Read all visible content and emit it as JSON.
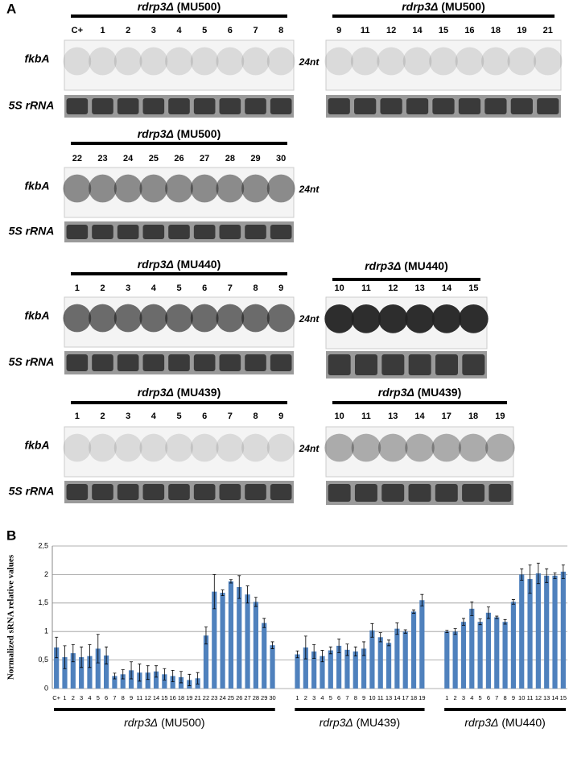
{
  "panel_a": {
    "label": "A",
    "blots": [
      {
        "gene": "rdrp3Δ",
        "strain": "(MU500)",
        "lanes": [
          "C+",
          "1",
          "2",
          "3",
          "4",
          "5",
          "6",
          "7",
          "8"
        ],
        "probe": "fkbA",
        "loading": "5S rRNA",
        "size": "24nt"
      },
      {
        "gene": "rdrp3Δ",
        "strain": "(MU500)",
        "lanes": [
          "9",
          "11",
          "12",
          "14",
          "15",
          "16",
          "18",
          "19",
          "21"
        ]
      },
      {
        "gene": "rdrp3Δ",
        "strain": "(MU500)",
        "lanes": [
          "22",
          "23",
          "24",
          "25",
          "26",
          "27",
          "28",
          "29",
          "30"
        ],
        "probe": "fkbA",
        "loading": "5S rRNA",
        "size": "24nt"
      },
      {
        "gene": "rdrp3Δ",
        "strain": "(MU440)",
        "lanes": [
          "1",
          "2",
          "3",
          "4",
          "5",
          "6",
          "7",
          "8",
          "9"
        ],
        "probe": "fkbA",
        "loading": "5S rRNA",
        "size": "24nt"
      },
      {
        "gene": "rdrp3Δ",
        "strain": "(MU440)",
        "lanes": [
          "10",
          "11",
          "12",
          "13",
          "14",
          "15"
        ]
      },
      {
        "gene": "rdrp3Δ",
        "strain": "(MU439)",
        "lanes": [
          "1",
          "2",
          "3",
          "4",
          "5",
          "6",
          "7",
          "8",
          "9"
        ],
        "probe": "fkbA",
        "loading": "5S rRNA",
        "size": "24nt"
      },
      {
        "gene": "rdrp3Δ",
        "strain": "(MU439)",
        "lanes": [
          "10",
          "11",
          "13",
          "14",
          "17",
          "18",
          "19"
        ]
      }
    ]
  },
  "chart_data": {
    "type": "bar",
    "panel_label": "B",
    "ylabel": "Normalized sRNA relative values",
    "ylim": [
      0,
      2.5
    ],
    "yticks": [
      0,
      {
        "value": 0.5,
        "label": "0,5"
      },
      1,
      {
        "value": 1.5,
        "label": "1,5"
      },
      2,
      {
        "value": 2.5,
        "label": "2,5"
      }
    ],
    "grid": true,
    "color": "#4f81bd",
    "groups": [
      {
        "gene": "rdrp3Δ",
        "strain": "(MU500)",
        "categories": [
          "C+",
          "1",
          "2",
          "3",
          "4",
          "5",
          "6",
          "7",
          "8",
          "9",
          "11",
          "12",
          "14",
          "15",
          "16",
          "18",
          "19",
          "21",
          "22",
          "23",
          "24",
          "25",
          "26",
          "27",
          "28",
          "29",
          "30"
        ],
        "values": [
          0.72,
          0.55,
          0.62,
          0.55,
          0.57,
          0.7,
          0.58,
          0.22,
          0.25,
          0.32,
          0.28,
          0.28,
          0.3,
          0.25,
          0.22,
          0.2,
          0.15,
          0.18,
          0.93,
          1.7,
          1.68,
          1.88,
          1.78,
          1.65,
          1.52,
          1.15,
          0.76
        ],
        "errors": [
          0.18,
          0.2,
          0.15,
          0.18,
          0.2,
          0.25,
          0.15,
          0.05,
          0.08,
          0.15,
          0.15,
          0.12,
          0.1,
          0.1,
          0.1,
          0.1,
          0.1,
          0.1,
          0.15,
          0.3,
          0.05,
          0.03,
          0.2,
          0.15,
          0.08,
          0.08,
          0.06
        ]
      },
      {
        "gene": "rdrp3Δ",
        "strain": "(MU439)",
        "categories": [
          "1",
          "2",
          "3",
          "4",
          "5",
          "6",
          "7",
          "8",
          "9",
          "10",
          "11",
          "13",
          "14",
          "17",
          "18",
          "19"
        ],
        "values": [
          0.6,
          0.72,
          0.65,
          0.57,
          0.67,
          0.75,
          0.68,
          0.65,
          0.7,
          1.02,
          0.9,
          0.8,
          1.05,
          1.0,
          1.35,
          1.55
        ],
        "errors": [
          0.06,
          0.2,
          0.12,
          0.1,
          0.06,
          0.12,
          0.1,
          0.08,
          0.12,
          0.12,
          0.08,
          0.05,
          0.1,
          0.03,
          0.03,
          0.1
        ]
      },
      {
        "gene": "rdrp3Δ",
        "strain": "(MU440)",
        "categories": [
          "1",
          "2",
          "3",
          "4",
          "5",
          "6",
          "7",
          "8",
          "9",
          "10",
          "11",
          "12",
          "13",
          "14",
          "15"
        ],
        "values": [
          1.0,
          1.0,
          1.17,
          1.4,
          1.17,
          1.33,
          1.25,
          1.17,
          1.52,
          2.0,
          1.92,
          2.02,
          1.98,
          1.98,
          2.05
        ],
        "errors": [
          0.02,
          0.05,
          0.06,
          0.12,
          0.05,
          0.1,
          0.02,
          0.04,
          0.04,
          0.1,
          0.25,
          0.18,
          0.12,
          0.05,
          0.12
        ]
      }
    ]
  }
}
